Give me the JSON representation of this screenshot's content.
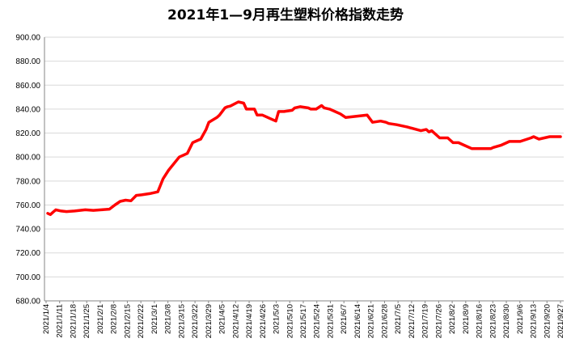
{
  "chart_data": {
    "type": "line",
    "title": "2021年1—9月再生塑料价格指数走势",
    "xlabel": "",
    "ylabel": "",
    "ylim": [
      680,
      900
    ],
    "yticks": [
      "900.00",
      "880.00",
      "860.00",
      "840.00",
      "820.00",
      "800.00",
      "780.00",
      "760.00",
      "740.00",
      "720.00",
      "700.00",
      "680.00"
    ],
    "x_ticks": [
      "2021/1/4",
      "2021/1/11",
      "2021/1/18",
      "2021/1/25",
      "2021/2/1",
      "2021/2/8",
      "2021/2/15",
      "2021/2/22",
      "2021/3/1",
      "2021/3/8",
      "2021/3/15",
      "2021/3/22",
      "2021/3/29",
      "2021/4/5",
      "2021/4/12",
      "2021/4/19",
      "2021/4/26",
      "2021/5/3",
      "2021/5/10",
      "2021/5/17",
      "2021/5/24",
      "2021/5/31",
      "2021/6/7",
      "2021/6/14",
      "2021/6/21",
      "2021/6/28",
      "2021/7/5",
      "2021/7/12",
      "2021/7/19",
      "2021/7/26",
      "2021/8/2",
      "2021/8/9",
      "2021/8/16",
      "2021/8/23",
      "2021/8/30",
      "2021/9/6",
      "2021/9/13",
      "2021/9/20",
      "2021/9/27"
    ],
    "grid": true,
    "legend": "none",
    "line_color": "#ff0000",
    "series": [
      {
        "name": "",
        "x": [
          0,
          1,
          2,
          3,
          5,
          7,
          10,
          14,
          17,
          20,
          23,
          25,
          27,
          29,
          31,
          33,
          35,
          38,
          41,
          43,
          45,
          49,
          52,
          54,
          56,
          57,
          59,
          60,
          63,
          64,
          66,
          67,
          68,
          71,
          73,
          74,
          75,
          77,
          78,
          80,
          81,
          83,
          85,
          86,
          88,
          91,
          92,
          94,
          97,
          98,
          100,
          102,
          103,
          105,
          109,
          111,
          115,
          119,
          121,
          124,
          126,
          127,
          130,
          134,
          139,
          141,
          142,
          143,
          146,
          149,
          151,
          153,
          155,
          158,
          160,
          161,
          163,
          165,
          166,
          169,
          172,
          174,
          176,
          180,
          181,
          183,
          187,
          191
        ],
        "y": [
          753,
          752,
          754,
          756,
          755,
          754.5,
          755,
          756,
          755.5,
          756,
          756.5,
          760,
          763,
          764,
          763.5,
          768,
          768.5,
          769.5,
          771,
          782,
          789,
          800,
          803,
          812,
          814,
          815,
          823,
          829,
          833,
          835,
          841,
          842,
          842.5,
          846,
          845,
          840,
          840,
          840,
          835,
          835,
          834,
          832,
          830,
          838,
          838,
          839,
          841,
          842,
          841,
          840,
          840,
          843,
          841,
          840,
          836,
          833,
          834,
          835,
          829,
          830,
          829,
          828,
          827,
          825,
          822,
          823,
          821,
          822,
          816,
          816,
          812,
          812,
          810,
          807,
          807,
          807,
          807,
          807,
          808,
          810,
          813,
          813,
          813,
          816,
          817,
          815,
          817,
          817
        ]
      }
    ]
  }
}
